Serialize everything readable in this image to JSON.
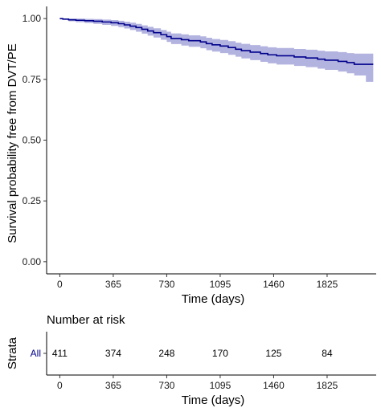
{
  "chart_data": [
    {
      "type": "line",
      "chart_kind": "kaplan-meier survival curve with 95% confidence band",
      "xlabel": "Time (days)",
      "ylabel": "Survival probability free from DVT/PE",
      "x_ticks": [
        0,
        365,
        730,
        1095,
        1460,
        1825
      ],
      "y_ticks": [
        0.0,
        0.25,
        0.5,
        0.75,
        1.0
      ],
      "y_tick_labels": [
        "0.00",
        "0.25",
        "0.50",
        "0.75",
        "1.00"
      ],
      "xlim": [
        -90,
        2160
      ],
      "ylim": [
        -0.05,
        1.05
      ],
      "grid": false,
      "line_color": "#00008b",
      "band_color": "#b3b3e0",
      "series": [
        {
          "name": "All",
          "steps": [
            [
              0,
              1.0
            ],
            [
              20,
              0.998
            ],
            [
              60,
              0.995
            ],
            [
              110,
              0.993
            ],
            [
              170,
              0.991
            ],
            [
              230,
              0.989
            ],
            [
              290,
              0.986
            ],
            [
              350,
              0.983
            ],
            [
              400,
              0.979
            ],
            [
              440,
              0.974
            ],
            [
              480,
              0.969
            ],
            [
              520,
              0.963
            ],
            [
              560,
              0.956
            ],
            [
              600,
              0.949
            ],
            [
              640,
              0.942
            ],
            [
              690,
              0.934
            ],
            [
              730,
              0.926
            ],
            [
              760,
              0.918
            ],
            [
              830,
              0.913
            ],
            [
              880,
              0.909
            ],
            [
              960,
              0.904
            ],
            [
              1000,
              0.897
            ],
            [
              1040,
              0.892
            ],
            [
              1095,
              0.887
            ],
            [
              1150,
              0.881
            ],
            [
              1200,
              0.874
            ],
            [
              1240,
              0.868
            ],
            [
              1300,
              0.862
            ],
            [
              1370,
              0.856
            ],
            [
              1420,
              0.851
            ],
            [
              1480,
              0.847
            ],
            [
              1600,
              0.842
            ],
            [
              1680,
              0.838
            ],
            [
              1760,
              0.833
            ],
            [
              1810,
              0.829
            ],
            [
              1900,
              0.824
            ],
            [
              1960,
              0.819
            ],
            [
              2010,
              0.812
            ],
            [
              2140,
              0.812
            ]
          ],
          "upper": [
            [
              0,
              1.0
            ],
            [
              20,
              1.0
            ],
            [
              110,
              1.0
            ],
            [
              170,
              0.999
            ],
            [
              230,
              0.998
            ],
            [
              290,
              0.996
            ],
            [
              350,
              0.994
            ],
            [
              400,
              0.991
            ],
            [
              440,
              0.987
            ],
            [
              480,
              0.983
            ],
            [
              520,
              0.978
            ],
            [
              560,
              0.972
            ],
            [
              600,
              0.966
            ],
            [
              640,
              0.96
            ],
            [
              690,
              0.953
            ],
            [
              730,
              0.946
            ],
            [
              760,
              0.939
            ],
            [
              830,
              0.935
            ],
            [
              880,
              0.931
            ],
            [
              960,
              0.927
            ],
            [
              1000,
              0.921
            ],
            [
              1040,
              0.916
            ],
            [
              1095,
              0.912
            ],
            [
              1150,
              0.907
            ],
            [
              1200,
              0.901
            ],
            [
              1240,
              0.896
            ],
            [
              1300,
              0.891
            ],
            [
              1370,
              0.886
            ],
            [
              1420,
              0.882
            ],
            [
              1480,
              0.879
            ],
            [
              1600,
              0.875
            ],
            [
              1680,
              0.872
            ],
            [
              1760,
              0.868
            ],
            [
              1810,
              0.865
            ],
            [
              1900,
              0.862
            ],
            [
              1960,
              0.858
            ],
            [
              2010,
              0.856
            ],
            [
              2090,
              0.856
            ],
            [
              2140,
              0.856
            ]
          ],
          "lower": [
            [
              0,
              1.0
            ],
            [
              20,
              0.994
            ],
            [
              60,
              0.989
            ],
            [
              110,
              0.985
            ],
            [
              170,
              0.982
            ],
            [
              230,
              0.978
            ],
            [
              290,
              0.974
            ],
            [
              350,
              0.97
            ],
            [
              400,
              0.965
            ],
            [
              440,
              0.959
            ],
            [
              480,
              0.953
            ],
            [
              520,
              0.946
            ],
            [
              560,
              0.938
            ],
            [
              600,
              0.93
            ],
            [
              640,
              0.922
            ],
            [
              690,
              0.913
            ],
            [
              730,
              0.904
            ],
            [
              760,
              0.895
            ],
            [
              830,
              0.889
            ],
            [
              880,
              0.884
            ],
            [
              960,
              0.878
            ],
            [
              1000,
              0.87
            ],
            [
              1040,
              0.864
            ],
            [
              1095,
              0.858
            ],
            [
              1150,
              0.851
            ],
            [
              1200,
              0.843
            ],
            [
              1240,
              0.836
            ],
            [
              1300,
              0.829
            ],
            [
              1370,
              0.822
            ],
            [
              1420,
              0.816
            ],
            [
              1480,
              0.811
            ],
            [
              1600,
              0.805
            ],
            [
              1680,
              0.8
            ],
            [
              1760,
              0.794
            ],
            [
              1810,
              0.789
            ],
            [
              1900,
              0.782
            ],
            [
              1960,
              0.775
            ],
            [
              2010,
              0.766
            ],
            [
              2090,
              0.74
            ],
            [
              2140,
              0.74
            ]
          ]
        }
      ]
    },
    {
      "type": "table",
      "chart_kind": "number at risk table",
      "title": "Number at risk",
      "xlabel": "Time (days)",
      "ylabel": "Strata",
      "x_ticks": [
        0,
        365,
        730,
        1095,
        1460,
        1825
      ],
      "xlim": [
        -90,
        2160
      ],
      "strata": [
        {
          "label": "All",
          "color": "#00008b",
          "counts": [
            411,
            374,
            248,
            170,
            125,
            84
          ]
        }
      ]
    }
  ]
}
